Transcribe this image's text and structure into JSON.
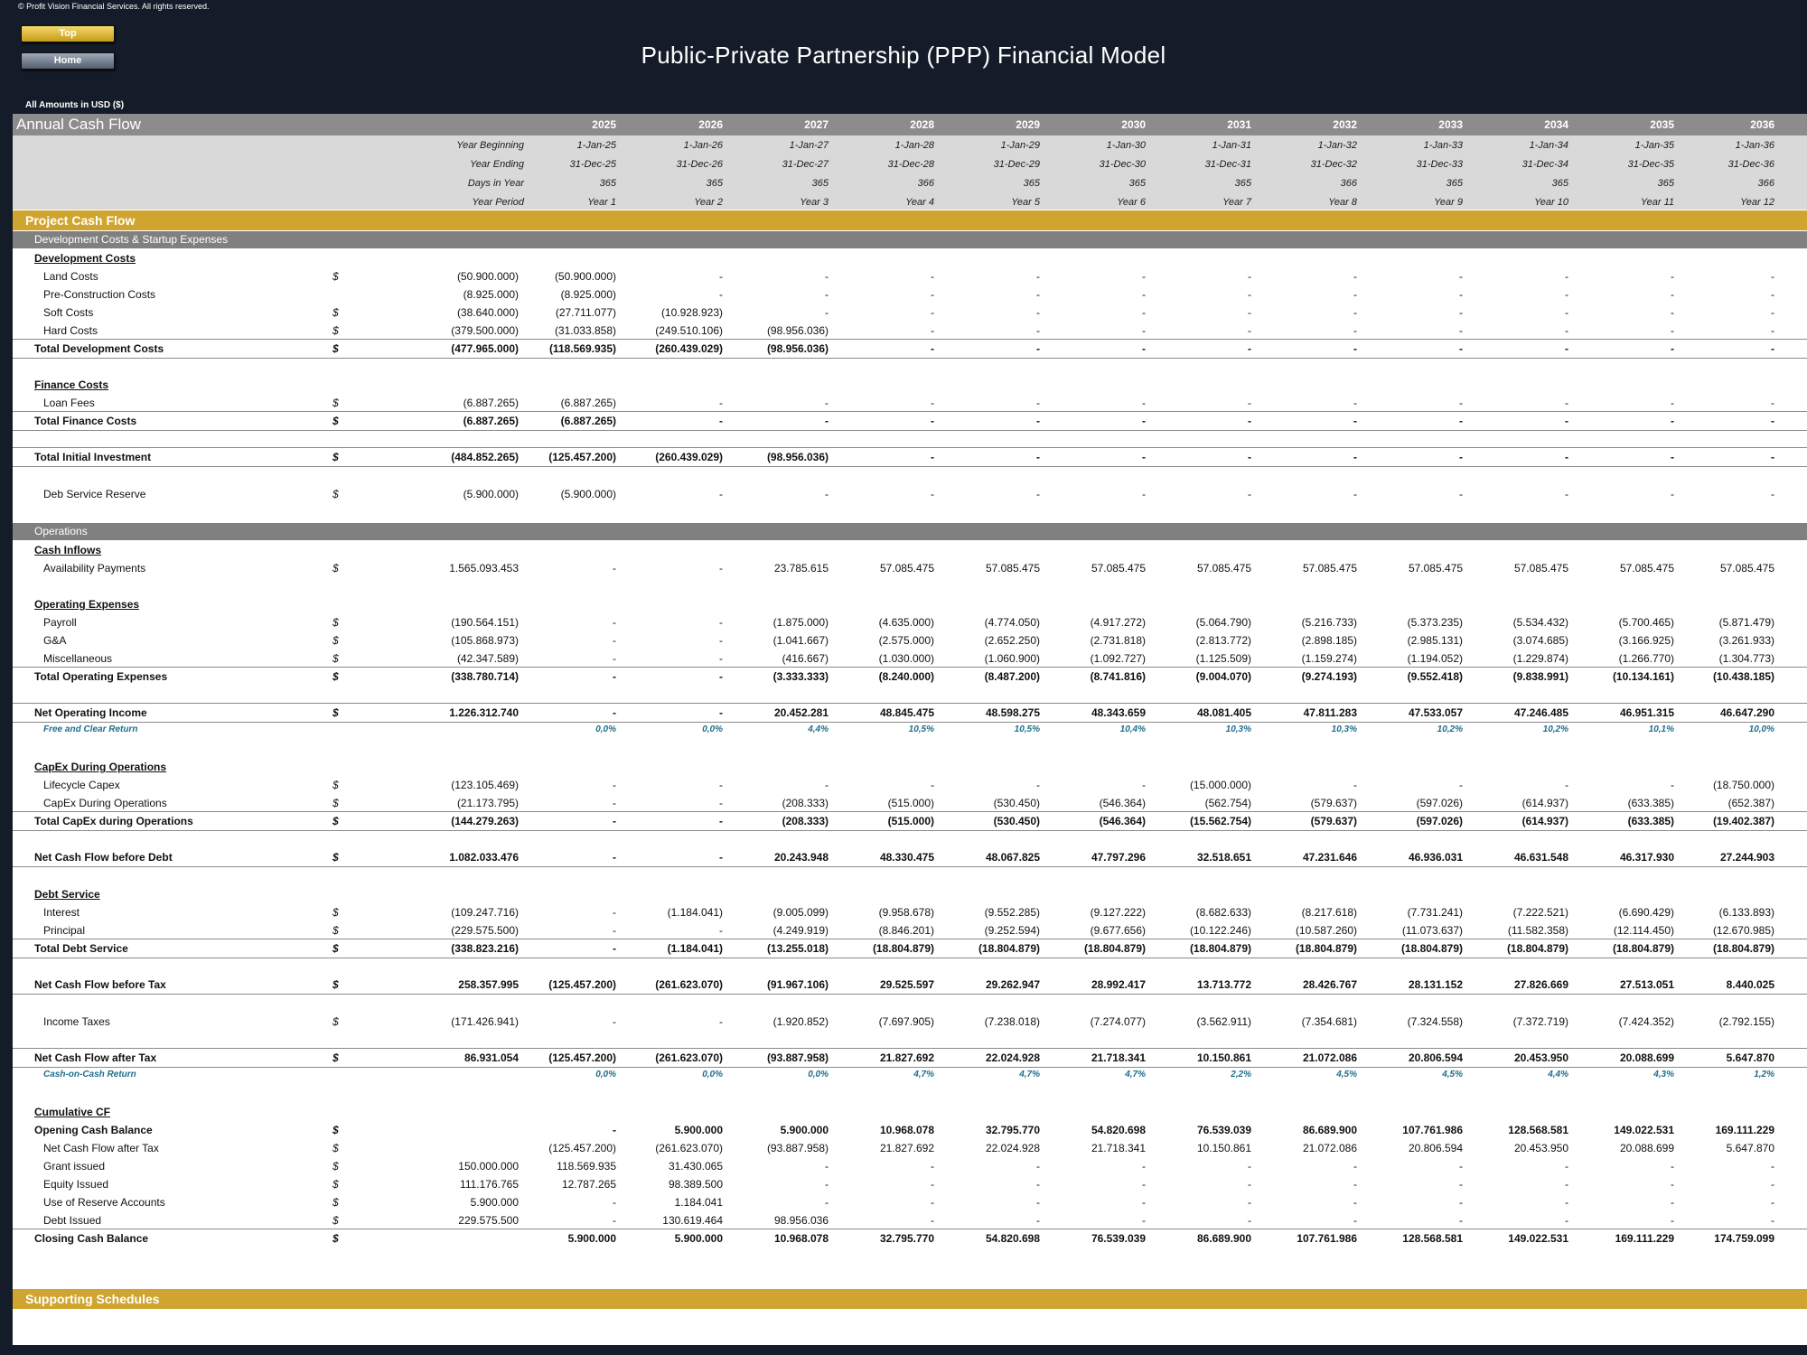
{
  "header": {
    "copyright": "© Profit Vision Financial Services. All rights reserved.",
    "top_button": "Top",
    "home_button": "Home",
    "title": "Public-Private Partnership (PPP) Financial Model",
    "amounts_note": "All Amounts in  USD ($)"
  },
  "sheet": {
    "title": "Annual Cash Flow",
    "years": [
      "2025",
      "2026",
      "2027",
      "2028",
      "2029",
      "2030",
      "2031",
      "2032",
      "2033",
      "2034",
      "2035",
      "2036"
    ],
    "meta": [
      {
        "label": "Year Beginning",
        "values": [
          "1-Jan-25",
          "1-Jan-26",
          "1-Jan-27",
          "1-Jan-28",
          "1-Jan-29",
          "1-Jan-30",
          "1-Jan-31",
          "1-Jan-32",
          "1-Jan-33",
          "1-Jan-34",
          "1-Jan-35",
          "1-Jan-36"
        ]
      },
      {
        "label": "Year Ending",
        "values": [
          "31-Dec-25",
          "31-Dec-26",
          "31-Dec-27",
          "31-Dec-28",
          "31-Dec-29",
          "31-Dec-30",
          "31-Dec-31",
          "31-Dec-32",
          "31-Dec-33",
          "31-Dec-34",
          "31-Dec-35",
          "31-Dec-36"
        ]
      },
      {
        "label": "Days in Year",
        "values": [
          "365",
          "365",
          "365",
          "366",
          "365",
          "365",
          "365",
          "366",
          "365",
          "365",
          "365",
          "366"
        ]
      },
      {
        "label": "Year Period",
        "values": [
          "Year 1",
          "Year 2",
          "Year 3",
          "Year 4",
          "Year 5",
          "Year 6",
          "Year 7",
          "Year 8",
          "Year 9",
          "Year 10",
          "Year 11",
          "Year 12"
        ]
      }
    ],
    "project_cash_flow": "Project Cash Flow",
    "development_band": "Development Costs & Startup Expenses",
    "operations_band": "Operations",
    "supporting": "Supporting Schedules"
  },
  "rows": [
    {
      "label": "Development Costs",
      "type": "section"
    },
    {
      "label": "Land Costs",
      "type": "indent",
      "cur": "$",
      "total": "(50.900.000)",
      "v": [
        "(50.900.000)",
        "-",
        "-",
        "-",
        "-",
        "-",
        "-",
        "-",
        "-",
        "-",
        "-",
        "-"
      ]
    },
    {
      "label": "Pre-Construction Costs",
      "type": "indent",
      "cur": "",
      "total": "(8.925.000)",
      "v": [
        "(8.925.000)",
        "-",
        "-",
        "-",
        "-",
        "-",
        "-",
        "-",
        "-",
        "-",
        "-",
        "-"
      ]
    },
    {
      "label": "Soft Costs",
      "type": "indent",
      "cur": "$",
      "total": "(38.640.000)",
      "v": [
        "(27.711.077)",
        "(10.928.923)",
        "-",
        "-",
        "-",
        "-",
        "-",
        "-",
        "-",
        "-",
        "-",
        "-"
      ]
    },
    {
      "label": "Hard Costs",
      "type": "indent",
      "cur": "$",
      "total": "(379.500.000)",
      "v": [
        "(31.033.858)",
        "(249.510.106)",
        "(98.956.036)",
        "-",
        "-",
        "-",
        "-",
        "-",
        "-",
        "-",
        "-",
        "-"
      ]
    },
    {
      "label": "Total Development Costs",
      "type": "total",
      "cur": "$",
      "total": "(477.965.000)",
      "v": [
        "(118.569.935)",
        "(260.439.029)",
        "(98.956.036)",
        "-",
        "-",
        "-",
        "-",
        "-",
        "-",
        "-",
        "-",
        "-"
      ]
    },
    {
      "label": "Finance Costs",
      "type": "section"
    },
    {
      "label": "Loan Fees",
      "type": "indent",
      "cur": "$",
      "total": "(6.887.265)",
      "v": [
        "(6.887.265)",
        "-",
        "-",
        "-",
        "-",
        "-",
        "-",
        "-",
        "-",
        "-",
        "-",
        "-"
      ]
    },
    {
      "label": "Total Finance Costs",
      "type": "total",
      "cur": "$",
      "total": "(6.887.265)",
      "v": [
        "(6.887.265)",
        "-",
        "-",
        "-",
        "-",
        "-",
        "-",
        "-",
        "-",
        "-",
        "-",
        "-"
      ]
    },
    {
      "label": "Total Initial Investment",
      "type": "total",
      "cur": "$",
      "total": "(484.852.265)",
      "v": [
        "(125.457.200)",
        "(260.439.029)",
        "(98.956.036)",
        "-",
        "-",
        "-",
        "-",
        "-",
        "-",
        "-",
        "-",
        "-"
      ]
    },
    {
      "label": "Deb Service Reserve",
      "type": "indent",
      "cur": "$",
      "total": "(5.900.000)",
      "v": [
        "(5.900.000)",
        "-",
        "-",
        "-",
        "-",
        "-",
        "-",
        "-",
        "-",
        "-",
        "-",
        "-"
      ]
    },
    {
      "label": "Cash Inflows",
      "type": "section"
    },
    {
      "label": "Availability Payments",
      "type": "indent",
      "cur": "$",
      "total": "1.565.093.453",
      "v": [
        "-",
        "-",
        "23.785.615",
        "57.085.475",
        "57.085.475",
        "57.085.475",
        "57.085.475",
        "57.085.475",
        "57.085.475",
        "57.085.475",
        "57.085.475",
        "57.085.475"
      ]
    },
    {
      "label": "Operating Expenses",
      "type": "section"
    },
    {
      "label": "Payroll",
      "type": "indent",
      "cur": "$",
      "total": "(190.564.151)",
      "v": [
        "-",
        "-",
        "(1.875.000)",
        "(4.635.000)",
        "(4.774.050)",
        "(4.917.272)",
        "(5.064.790)",
        "(5.216.733)",
        "(5.373.235)",
        "(5.534.432)",
        "(5.700.465)",
        "(5.871.479)"
      ]
    },
    {
      "label": "G&A",
      "type": "indent",
      "cur": "$",
      "total": "(105.868.973)",
      "v": [
        "-",
        "-",
        "(1.041.667)",
        "(2.575.000)",
        "(2.652.250)",
        "(2.731.818)",
        "(2.813.772)",
        "(2.898.185)",
        "(2.985.131)",
        "(3.074.685)",
        "(3.166.925)",
        "(3.261.933)"
      ]
    },
    {
      "label": "Miscellaneous",
      "type": "indent",
      "cur": "$",
      "total": "(42.347.589)",
      "v": [
        "-",
        "-",
        "(416.667)",
        "(1.030.000)",
        "(1.060.900)",
        "(1.092.727)",
        "(1.125.509)",
        "(1.159.274)",
        "(1.194.052)",
        "(1.229.874)",
        "(1.266.770)",
        "(1.304.773)"
      ]
    },
    {
      "label": "Total Operating Expenses",
      "type": "total",
      "cur": "$",
      "total": "(338.780.714)",
      "v": [
        "-",
        "-",
        "(3.333.333)",
        "(8.240.000)",
        "(8.487.200)",
        "(8.741.816)",
        "(9.004.070)",
        "(9.274.193)",
        "(9.552.418)",
        "(9.838.991)",
        "(10.134.161)",
        "(10.438.185)"
      ]
    },
    {
      "label": "Net Operating Income",
      "type": "total",
      "cur": "$",
      "total": "1.226.312.740",
      "v": [
        "-",
        "-",
        "20.452.281",
        "48.845.475",
        "48.598.275",
        "48.343.659",
        "48.081.405",
        "47.811.283",
        "47.533.057",
        "47.246.485",
        "46.951.315",
        "46.647.290"
      ]
    },
    {
      "label": "Free and Clear Return",
      "type": "ratio",
      "cur": "",
      "total": "",
      "v": [
        "0,0%",
        "0,0%",
        "4,4%",
        "10,5%",
        "10,5%",
        "10,4%",
        "10,3%",
        "10,3%",
        "10,2%",
        "10,2%",
        "10,1%",
        "10,0%"
      ]
    },
    {
      "label": "CapEx During Operations",
      "type": "section"
    },
    {
      "label": "Lifecycle Capex",
      "type": "indent",
      "cur": "$",
      "total": "(123.105.469)",
      "v": [
        "-",
        "-",
        "-",
        "-",
        "-",
        "-",
        "(15.000.000)",
        "-",
        "-",
        "-",
        "-",
        "(18.750.000)"
      ]
    },
    {
      "label": "CapEx During Operations",
      "type": "indent",
      "cur": "$",
      "total": "(21.173.795)",
      "v": [
        "-",
        "-",
        "(208.333)",
        "(515.000)",
        "(530.450)",
        "(546.364)",
        "(562.754)",
        "(579.637)",
        "(597.026)",
        "(614.937)",
        "(633.385)",
        "(652.387)"
      ]
    },
    {
      "label": "Total CapEx during Operations",
      "type": "total",
      "cur": "$",
      "total": "(144.279.263)",
      "v": [
        "-",
        "-",
        "(208.333)",
        "(515.000)",
        "(530.450)",
        "(546.364)",
        "(15.562.754)",
        "(579.637)",
        "(597.026)",
        "(614.937)",
        "(633.385)",
        "(19.402.387)"
      ]
    },
    {
      "label": "Net Cash Flow before Debt",
      "type": "total",
      "cur": "$",
      "total": "1.082.033.476",
      "v": [
        "-",
        "-",
        "20.243.948",
        "48.330.475",
        "48.067.825",
        "47.797.296",
        "32.518.651",
        "47.231.646",
        "46.936.031",
        "46.631.548",
        "46.317.930",
        "27.244.903"
      ]
    },
    {
      "label": "Debt Service",
      "type": "section"
    },
    {
      "label": "Interest",
      "type": "indent",
      "cur": "$",
      "total": "(109.247.716)",
      "v": [
        "-",
        "(1.184.041)",
        "(9.005.099)",
        "(9.958.678)",
        "(9.552.285)",
        "(9.127.222)",
        "(8.682.633)",
        "(8.217.618)",
        "(7.731.241)",
        "(7.222.521)",
        "(6.690.429)",
        "(6.133.893)"
      ]
    },
    {
      "label": "Principal",
      "type": "indent",
      "cur": "$",
      "total": "(229.575.500)",
      "v": [
        "-",
        "-",
        "(4.249.919)",
        "(8.846.201)",
        "(9.252.594)",
        "(9.677.656)",
        "(10.122.246)",
        "(10.587.260)",
        "(11.073.637)",
        "(11.582.358)",
        "(12.114.450)",
        "(12.670.985)"
      ]
    },
    {
      "label": "Total Debt Service",
      "type": "total",
      "cur": "$",
      "total": "(338.823.216)",
      "v": [
        "-",
        "(1.184.041)",
        "(13.255.018)",
        "(18.804.879)",
        "(18.804.879)",
        "(18.804.879)",
        "(18.804.879)",
        "(18.804.879)",
        "(18.804.879)",
        "(18.804.879)",
        "(18.804.879)",
        "(18.804.879)"
      ]
    },
    {
      "label": "Net Cash Flow before Tax",
      "type": "total",
      "cur": "$",
      "total": "258.357.995",
      "v": [
        "(125.457.200)",
        "(261.623.070)",
        "(91.967.106)",
        "29.525.597",
        "29.262.947",
        "28.992.417",
        "13.713.772",
        "28.426.767",
        "28.131.152",
        "27.826.669",
        "27.513.051",
        "8.440.025"
      ]
    },
    {
      "label": "Income Taxes",
      "type": "indent",
      "cur": "$",
      "total": "(171.426.941)",
      "v": [
        "-",
        "-",
        "(1.920.852)",
        "(7.697.905)",
        "(7.238.018)",
        "(7.274.077)",
        "(3.562.911)",
        "(7.354.681)",
        "(7.324.558)",
        "(7.372.719)",
        "(7.424.352)",
        "(2.792.155)"
      ]
    },
    {
      "label": "Net Cash Flow after Tax",
      "type": "total",
      "cur": "$",
      "total": "86.931.054",
      "v": [
        "(125.457.200)",
        "(261.623.070)",
        "(93.887.958)",
        "21.827.692",
        "22.024.928",
        "21.718.341",
        "10.150.861",
        "21.072.086",
        "20.806.594",
        "20.453.950",
        "20.088.699",
        "5.647.870"
      ]
    },
    {
      "label": "Cash-on-Cash Return",
      "type": "ratio",
      "cur": "",
      "total": "",
      "v": [
        "0,0%",
        "0,0%",
        "0,0%",
        "4,7%",
        "4,7%",
        "4,7%",
        "2,2%",
        "4,5%",
        "4,5%",
        "4,4%",
        "4,3%",
        "1,2%"
      ]
    },
    {
      "label": "Cumulative CF",
      "type": "section"
    },
    {
      "label": "Opening Cash Balance",
      "type": "total",
      "cur": "$",
      "total": "",
      "v": [
        "-",
        "5.900.000",
        "5.900.000",
        "10.968.078",
        "32.795.770",
        "54.820.698",
        "76.539.039",
        "86.689.900",
        "107.761.986",
        "128.568.581",
        "149.022.531",
        "169.111.229"
      ]
    },
    {
      "label": "Net Cash Flow after Tax",
      "type": "indent",
      "cur": "$",
      "total": "",
      "v": [
        "(125.457.200)",
        "(261.623.070)",
        "(93.887.958)",
        "21.827.692",
        "22.024.928",
        "21.718.341",
        "10.150.861",
        "21.072.086",
        "20.806.594",
        "20.453.950",
        "20.088.699",
        "5.647.870"
      ]
    },
    {
      "label": "Grant issued",
      "type": "indent",
      "cur": "$",
      "total": "150.000.000",
      "v": [
        "118.569.935",
        "31.430.065",
        "-",
        "-",
        "-",
        "-",
        "-",
        "-",
        "-",
        "-",
        "-",
        "-"
      ]
    },
    {
      "label": "Equity Issued",
      "type": "indent",
      "cur": "$",
      "total": "111.176.765",
      "v": [
        "12.787.265",
        "98.389.500",
        "-",
        "-",
        "-",
        "-",
        "-",
        "-",
        "-",
        "-",
        "-",
        "-"
      ]
    },
    {
      "label": "Use of Reserve Accounts",
      "type": "indent",
      "cur": "$",
      "total": "5.900.000",
      "v": [
        "-",
        "1.184.041",
        "-",
        "-",
        "-",
        "-",
        "-",
        "-",
        "-",
        "-",
        "-",
        "-"
      ]
    },
    {
      "label": "Debt Issued",
      "type": "indent",
      "cur": "$",
      "total": "229.575.500",
      "v": [
        "-",
        "130.619.464",
        "98.956.036",
        "-",
        "-",
        "-",
        "-",
        "-",
        "-",
        "-",
        "-",
        "-"
      ]
    },
    {
      "label": "Closing Cash Balance",
      "type": "total",
      "cur": "$",
      "total": "",
      "v": [
        "5.900.000",
        "5.900.000",
        "10.968.078",
        "32.795.770",
        "54.820.698",
        "76.539.039",
        "86.689.900",
        "107.761.986",
        "128.568.581",
        "149.022.531",
        "169.111.229",
        "174.759.099"
      ]
    }
  ]
}
